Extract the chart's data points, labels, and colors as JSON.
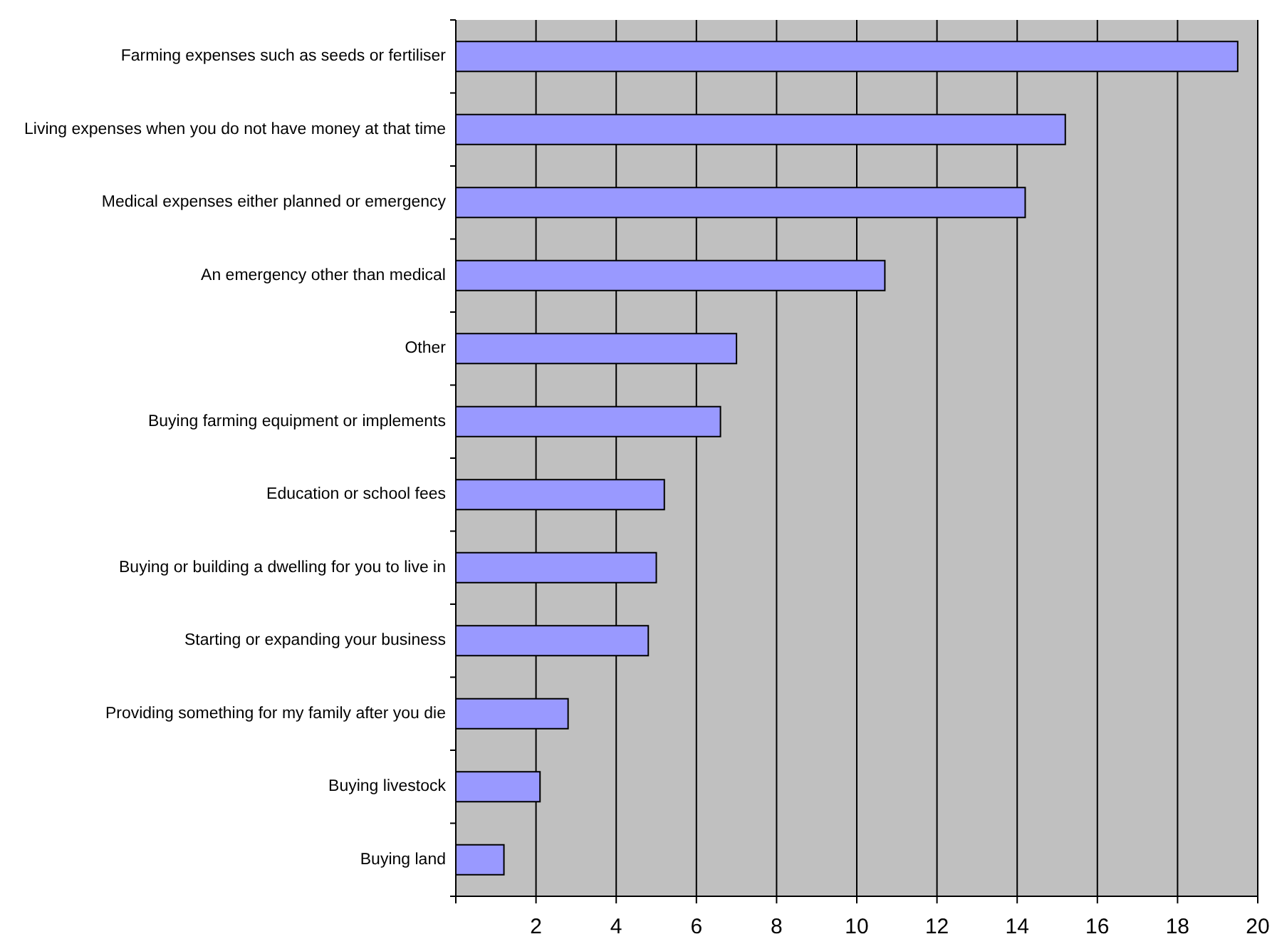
{
  "chart_data": {
    "type": "bar",
    "orientation": "horizontal",
    "categories": [
      "Farming expenses such as seeds or fertiliser",
      "Living expenses when you do not have money at that time",
      "Medical expenses either planned or emergency",
      "An emergency other than medical",
      "Other",
      "Buying  farming equipment or implements",
      "Education or school fees",
      "Buying or building a dwelling for you to live in",
      "Starting or expanding your business",
      "Providing something for my family after you die",
      "Buying livestock",
      "Buying land"
    ],
    "values": [
      19.5,
      15.2,
      14.2,
      10.7,
      7.0,
      6.6,
      5.2,
      5.0,
      4.8,
      2.8,
      2.1,
      1.2
    ],
    "color": "#9999ff",
    "xlim": [
      0,
      20
    ],
    "xticks": [
      {
        "value": 0,
        "label": null
      },
      2,
      4,
      6,
      8,
      10,
      12,
      14,
      16,
      18,
      20
    ],
    "grid": "x"
  }
}
